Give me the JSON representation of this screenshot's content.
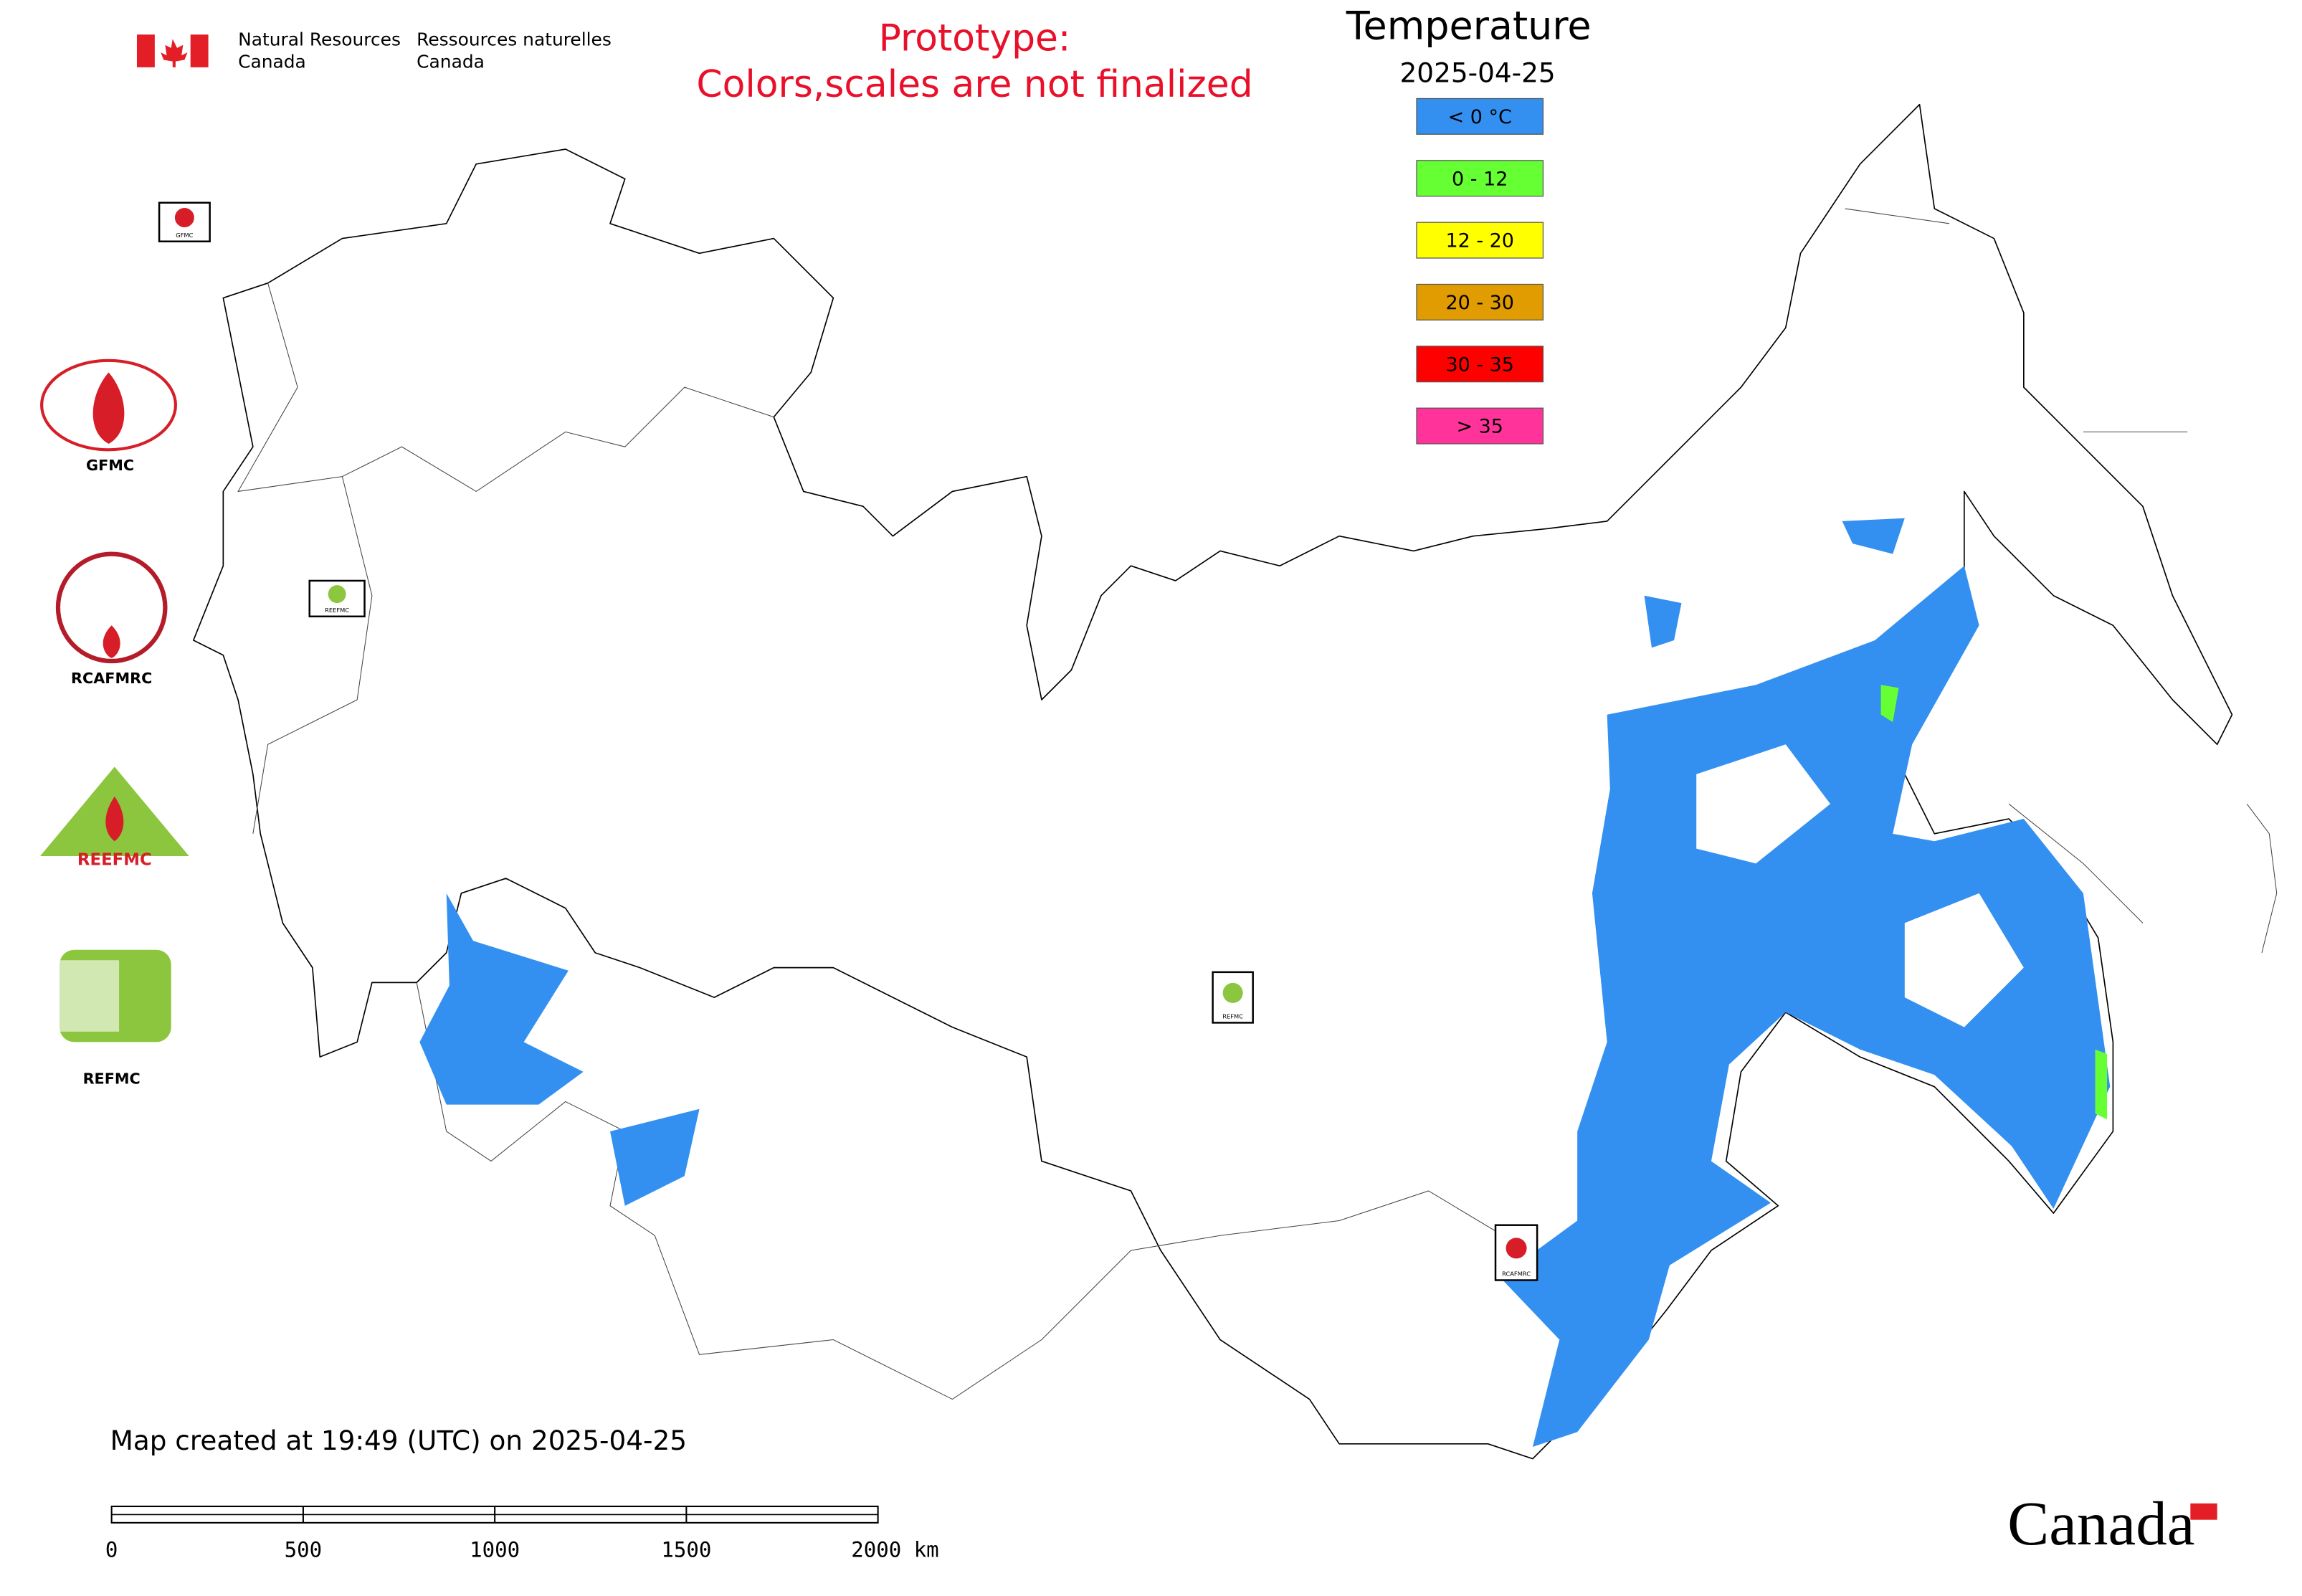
{
  "header": {
    "agency_en": [
      "Natural Resources",
      "Canada"
    ],
    "agency_fr": [
      "Ressources naturelles",
      "Canada"
    ],
    "notice": [
      "Prototype:",
      "Colors,scales are not finalized"
    ]
  },
  "legend": {
    "title": "Temperature",
    "date": "2025-04-25",
    "items": [
      {
        "label": "< 0 °C",
        "color": "#3390f0"
      },
      {
        "label": "0 - 12",
        "color": "#66ff33"
      },
      {
        "label": "12 - 20",
        "color": "#ffff00"
      },
      {
        "label": "20 - 30",
        "color": "#e09c00"
      },
      {
        "label": "30 - 35",
        "color": "#ff0000"
      },
      {
        "label": "> 35",
        "color": "#ff3399"
      }
    ]
  },
  "partners": [
    "GFMC",
    "RCAFMRC",
    "REEFMC",
    "REFMC"
  ],
  "map_markers": [
    "GFMC",
    "REEFMC",
    "REFMC",
    "RCAFMRC"
  ],
  "footer": {
    "created": "Map created at 19:49 (UTC) on 2025-04-25",
    "scale_labels": [
      "0",
      "500",
      "1000",
      "1500",
      "2000 km"
    ],
    "wordmark": "Canada"
  }
}
